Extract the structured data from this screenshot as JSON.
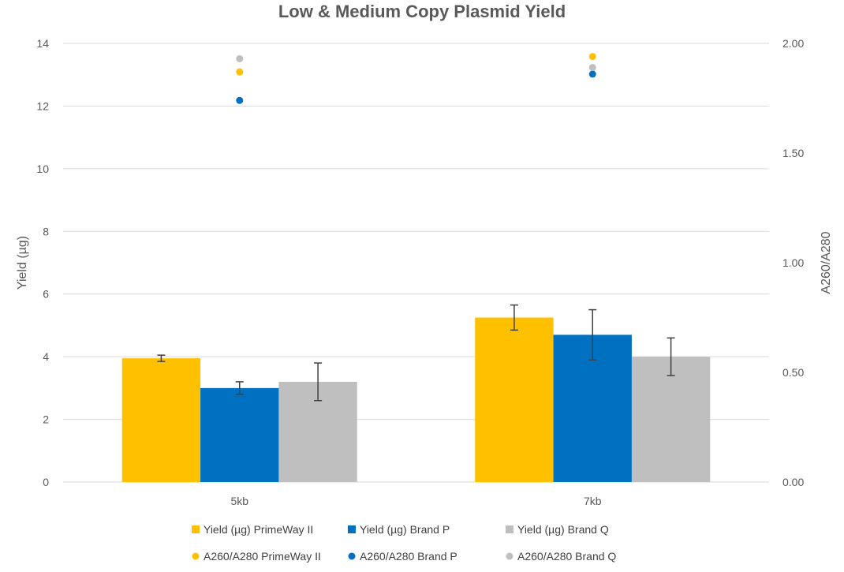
{
  "chart_data": {
    "type": "bar",
    "title": "Low & Medium Copy Plasmid Yield",
    "categories": [
      "5kb",
      "7kb"
    ],
    "ylabel": "Yield (µg)",
    "ylim": [
      0,
      14
    ],
    "yticks": [
      "0",
      "2",
      "4",
      "6",
      "8",
      "10",
      "12",
      "14"
    ],
    "y2label": "A260/A280",
    "y2lim": [
      0,
      2
    ],
    "y2ticks": [
      "0.00",
      "0.50",
      "1.00",
      "1.50",
      "2.00"
    ],
    "grid": true,
    "legend_position": "bottom",
    "series": [
      {
        "name": "Yield (µg) PrimeWay II",
        "type": "bar",
        "axis": "primary",
        "color": "#FFC000",
        "values": [
          3.95,
          5.25
        ],
        "error": [
          0.1,
          0.4
        ]
      },
      {
        "name": "Yield (µg) Brand P",
        "type": "bar",
        "axis": "primary",
        "color": "#0070C0",
        "values": [
          3.0,
          4.7
        ],
        "error": [
          0.2,
          0.8
        ]
      },
      {
        "name": "Yield (µg) Brand Q",
        "type": "bar",
        "axis": "primary",
        "color": "#BFBFBF",
        "values": [
          3.2,
          4.0
        ],
        "error": [
          0.6,
          0.6
        ]
      },
      {
        "name": "A260/A280 PrimeWay II",
        "type": "scatter",
        "axis": "secondary",
        "color": "#FFC000",
        "values": [
          1.87,
          1.94
        ]
      },
      {
        "name": "A260/A280 Brand P",
        "type": "scatter",
        "axis": "secondary",
        "color": "#0070C0",
        "values": [
          1.74,
          1.86
        ]
      },
      {
        "name": "A260/A280 Brand Q",
        "type": "scatter",
        "axis": "secondary",
        "color": "#BFBFBF",
        "values": [
          1.93,
          1.89
        ]
      }
    ]
  }
}
